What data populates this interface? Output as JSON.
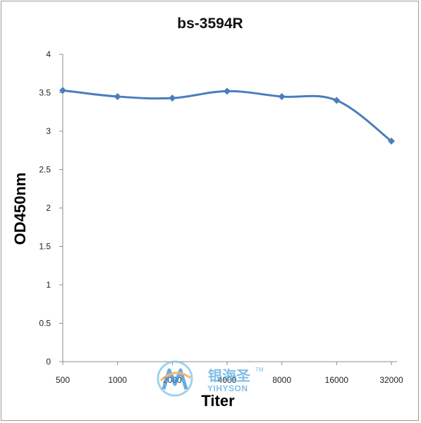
{
  "chart_data": {
    "type": "line",
    "title": "bs-3594R",
    "xlabel": "Titer",
    "ylabel": "OD450nm",
    "categories": [
      "500",
      "1000",
      "2000",
      "4000",
      "8000",
      "16000",
      "32000"
    ],
    "series": [
      {
        "values": [
          3.53,
          3.45,
          3.43,
          3.52,
          3.45,
          3.4,
          2.87
        ]
      }
    ],
    "ylim": [
      0,
      4
    ],
    "yticks": [
      "0",
      "0.5",
      "1",
      "1.5",
      "2",
      "2.5",
      "3",
      "3.5",
      "4"
    ],
    "grid": false,
    "legend": "none",
    "series_color": "#4a7dbd",
    "axis_color": "#8c8c8c"
  },
  "watermark": {
    "cn": "银海圣",
    "en": "YIHYSON",
    "tm": "TM"
  }
}
